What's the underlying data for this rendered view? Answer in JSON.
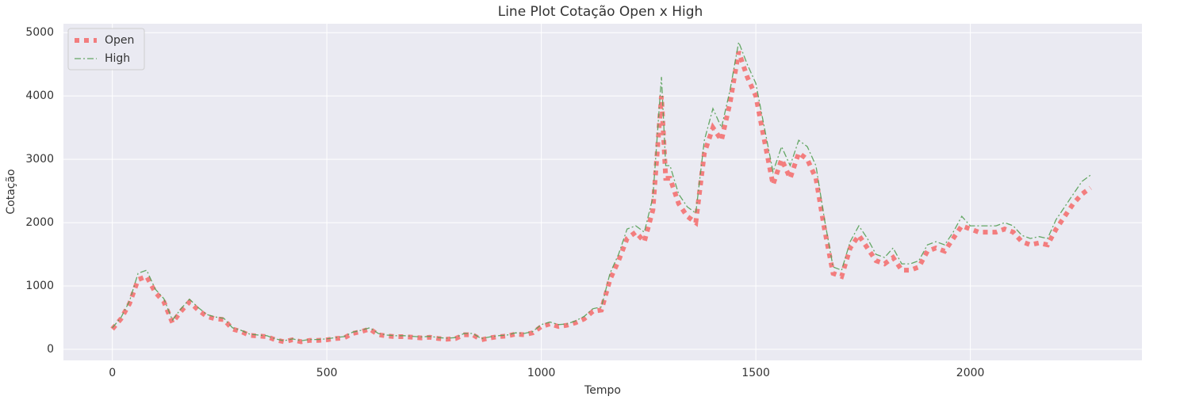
{
  "chart_data": {
    "type": "line",
    "title": "Line Plot Cotação Open x High",
    "x_label": "Tempo",
    "y_label": "Cotação",
    "x": [
      0,
      20,
      40,
      60,
      80,
      100,
      120,
      140,
      160,
      180,
      200,
      220,
      240,
      260,
      280,
      300,
      320,
      340,
      360,
      380,
      400,
      420,
      440,
      460,
      480,
      500,
      520,
      540,
      560,
      580,
      600,
      620,
      640,
      660,
      680,
      700,
      720,
      740,
      760,
      780,
      800,
      820,
      840,
      860,
      880,
      900,
      920,
      940,
      960,
      980,
      1000,
      1020,
      1040,
      1060,
      1080,
      1100,
      1120,
      1140,
      1160,
      1180,
      1200,
      1220,
      1240,
      1260,
      1280,
      1290,
      1300,
      1320,
      1340,
      1360,
      1380,
      1400,
      1420,
      1440,
      1460,
      1480,
      1500,
      1520,
      1540,
      1560,
      1580,
      1600,
      1620,
      1640,
      1660,
      1680,
      1700,
      1720,
      1740,
      1760,
      1780,
      1800,
      1820,
      1840,
      1860,
      1880,
      1900,
      1920,
      1940,
      1960,
      1980,
      2000,
      2020,
      2040,
      2060,
      2080,
      2100,
      2120,
      2140,
      2160,
      2180,
      2200,
      2220,
      2240,
      2260,
      2280
    ],
    "series": [
      {
        "name": "Open",
        "color": "#f46a6a",
        "linestyle": "dashed",
        "values": [
          320,
          480,
          720,
          1100,
          1150,
          900,
          750,
          420,
          600,
          750,
          620,
          520,
          480,
          470,
          320,
          280,
          220,
          210,
          200,
          150,
          120,
          150,
          120,
          140,
          140,
          150,
          170,
          180,
          250,
          280,
          320,
          230,
          210,
          200,
          200,
          190,
          180,
          190,
          170,
          160,
          170,
          230,
          230,
          150,
          180,
          200,
          210,
          240,
          230,
          260,
          360,
          400,
          360,
          380,
          420,
          480,
          600,
          620,
          1100,
          1400,
          1750,
          1850,
          1700,
          2200,
          4000,
          2700,
          2700,
          2300,
          2100,
          2000,
          3100,
          3500,
          3300,
          3900,
          4700,
          4300,
          4000,
          3300,
          2600,
          3000,
          2700,
          3100,
          3000,
          2700,
          1900,
          1200,
          1150,
          1600,
          1800,
          1600,
          1400,
          1350,
          1450,
          1250,
          1250,
          1300,
          1550,
          1600,
          1550,
          1750,
          1950,
          1900,
          1850,
          1850,
          1850,
          1900,
          1850,
          1700,
          1650,
          1680,
          1650,
          1900,
          2100,
          2300,
          2450,
          2550
        ]
      },
      {
        "name": "High",
        "color": "#55a055",
        "linestyle": "dashdot",
        "values": [
          340,
          500,
          760,
          1200,
          1250,
          950,
          800,
          460,
          640,
          790,
          660,
          550,
          510,
          490,
          340,
          300,
          240,
          225,
          215,
          165,
          135,
          165,
          135,
          155,
          155,
          165,
          185,
          200,
          270,
          300,
          340,
          250,
          225,
          215,
          215,
          205,
          195,
          205,
          185,
          175,
          185,
          250,
          250,
          170,
          195,
          215,
          225,
          260,
          250,
          280,
          390,
          430,
          390,
          400,
          450,
          520,
          640,
          670,
          1200,
          1500,
          1900,
          1950,
          1850,
          2400,
          4300,
          2900,
          2900,
          2450,
          2250,
          2150,
          3300,
          3800,
          3500,
          4100,
          4850,
          4500,
          4200,
          3500,
          2800,
          3200,
          2900,
          3300,
          3200,
          2900,
          2050,
          1300,
          1250,
          1700,
          1950,
          1750,
          1500,
          1450,
          1600,
          1350,
          1350,
          1400,
          1650,
          1700,
          1650,
          1850,
          2100,
          1950,
          1950,
          1950,
          1950,
          2000,
          1950,
          1800,
          1750,
          1780,
          1750,
          2050,
          2250,
          2450,
          2650,
          2750
        ]
      }
    ],
    "xlim": [
      -114,
      2400
    ],
    "ylim": [
      -175,
      5140
    ],
    "xticks": [
      0,
      500,
      1000,
      1500,
      2000
    ],
    "yticks": [
      0,
      1000,
      2000,
      3000,
      4000,
      5000
    ],
    "grid": true,
    "legend": "upper left"
  }
}
